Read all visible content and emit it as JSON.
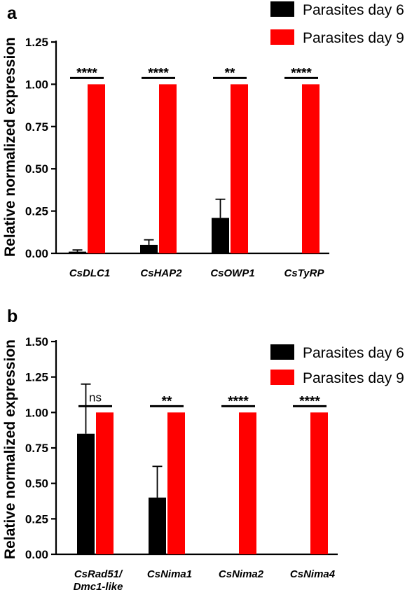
{
  "chart_data": [
    {
      "panel": "a",
      "type": "bar",
      "ylabel": "Relative normalized expression",
      "ylim": [
        0,
        1.25
      ],
      "yticks": [
        "0.00",
        "0.25",
        "0.50",
        "0.75",
        "1.00",
        "1.25"
      ],
      "categories": [
        "CsDLC1",
        "CsHAP2",
        "CsOWP1",
        "CsTyRP"
      ],
      "series": [
        {
          "name": "Parasites day 6",
          "color": "#000000",
          "values": [
            0.01,
            0.05,
            0.21,
            0.0
          ],
          "errors": [
            0.01,
            0.03,
            0.11,
            0.0
          ]
        },
        {
          "name": "Parasites day 9",
          "color": "#ff0000",
          "values": [
            1.0,
            1.0,
            1.0,
            1.0
          ],
          "errors": [
            0,
            0,
            0,
            0
          ]
        }
      ],
      "significance": [
        "****",
        "****",
        "**",
        "****"
      ],
      "legend": "top-right"
    },
    {
      "panel": "b",
      "type": "bar",
      "ylabel": "Relative normalized expression",
      "ylim": [
        0,
        1.5
      ],
      "yticks": [
        "0.00",
        "0.25",
        "0.50",
        "0.75",
        "1.00",
        "1.25",
        "1.50"
      ],
      "categories": [
        "CsRad51/\nDmc1-like",
        "CsNima1",
        "CsNima2",
        "CsNima4"
      ],
      "series": [
        {
          "name": "Parasites day 6",
          "color": "#000000",
          "values": [
            0.85,
            0.4,
            0.0,
            0.0
          ],
          "errors": [
            0.35,
            0.22,
            0.0,
            0.0
          ]
        },
        {
          "name": "Parasites day 9",
          "color": "#ff0000",
          "values": [
            1.0,
            1.0,
            1.0,
            1.0
          ],
          "errors": [
            0,
            0,
            0,
            0
          ]
        }
      ],
      "significance": [
        "ns",
        "**",
        "****",
        "****"
      ],
      "legend": "top-right"
    }
  ]
}
